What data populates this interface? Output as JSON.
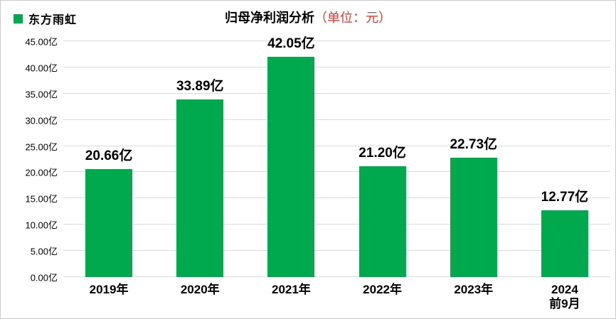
{
  "page": {
    "background": "#ffffff",
    "border_color": "#c9c9c9"
  },
  "legend": {
    "label": "东方雨虹",
    "swatch_color": "#00a84e",
    "position": "top-left"
  },
  "title": {
    "main": "归母净利润分析",
    "unit": "（单位：元）",
    "main_color": "#000000",
    "unit_color": "#e8372d"
  },
  "chart_data": {
    "type": "bar",
    "title": "归母净利润分析（单位：元）",
    "series_name": "东方雨虹",
    "categories": [
      "2019年",
      "2020年",
      "2021年",
      "2022年",
      "2023年",
      "2024前9月"
    ],
    "category_display": [
      [
        "2019年"
      ],
      [
        "2020年"
      ],
      [
        "2021年"
      ],
      [
        "2022年"
      ],
      [
        "2023年"
      ],
      [
        "2024",
        "前9月"
      ]
    ],
    "values": [
      20.66,
      33.89,
      42.05,
      21.2,
      22.73,
      12.77
    ],
    "data_labels": [
      "20.66亿",
      "33.89亿",
      "42.05亿",
      "21.20亿",
      "22.73亿",
      "12.77亿"
    ],
    "unit": "亿",
    "ylim": [
      0,
      45
    ],
    "y_tick_step": 5,
    "y_ticks": [
      "45.00亿",
      "40.00亿",
      "35.00亿",
      "30.00亿",
      "25.00亿",
      "20.00亿",
      "15.00亿",
      "10.00亿",
      "5.00亿",
      "0.00亿"
    ],
    "xlabel": "",
    "ylabel": "",
    "grid": true,
    "gridline_color": "#d9d9d9",
    "bar_color": "#00a84e",
    "label_color": "#000000",
    "legend_position": "top-left"
  }
}
